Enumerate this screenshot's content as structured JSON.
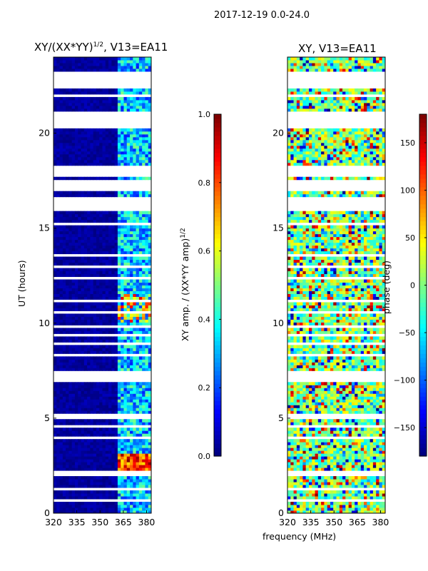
{
  "figure": {
    "suptitle": "2017-12-19 0.0-24.0"
  },
  "chart_data": [
    {
      "type": "heatmap",
      "title_main": "XY/(XX*YY)",
      "title_sup": "1/2",
      "title_suffix": ", V13=EA11",
      "xlabel": "frequency (MHz)",
      "ylabel": "UT (hours)",
      "xlim": [
        320,
        383
      ],
      "ylim": [
        0,
        24
      ],
      "xticks": [
        "320",
        "335",
        "350",
        "365",
        "380"
      ],
      "yticks": [
        "0",
        "5",
        "10",
        "15",
        "20"
      ],
      "colorbar": {
        "label_main": "XY amp. / (XX*YY amp)",
        "label_sup": "1/2",
        "range": [
          0.0,
          1.0
        ],
        "ticks": [
          "0.0",
          "0.2",
          "0.4",
          "0.6",
          "0.8",
          "1.0"
        ]
      },
      "colormap": "jet",
      "band_cols_MHz": [
        360,
        383
      ]
    },
    {
      "type": "heatmap",
      "title": "XY, V13=EA11",
      "xlabel": "frequency (MHz)",
      "ylabel": "",
      "xlim": [
        320,
        383
      ],
      "ylim": [
        0,
        24
      ],
      "xticks": [
        "320",
        "335",
        "350",
        "365",
        "380"
      ],
      "yticks": [
        "0",
        "5",
        "10",
        "15",
        "20"
      ],
      "colorbar": {
        "label": "phase (deg)",
        "range": [
          -180,
          180
        ],
        "ticks": [
          "−150",
          "−100",
          "−50",
          "0",
          "50",
          "100",
          "150"
        ]
      },
      "colormap": "jet"
    }
  ],
  "gaps_hours": [
    [
      23.0,
      23.3
    ],
    [
      22.3,
      22.9
    ],
    [
      21.9,
      22.0
    ],
    [
      20.2,
      21.1
    ],
    [
      19.9,
      20.0
    ],
    [
      17.9,
      18.3
    ],
    [
      17.7,
      17.8
    ],
    [
      16.9,
      17.5
    ],
    [
      15.9,
      16.7
    ],
    [
      15.2,
      15.3
    ],
    [
      14.8,
      14.9
    ],
    [
      14.2,
      14.3
    ],
    [
      13.5,
      13.6
    ],
    [
      12.9,
      13.0
    ],
    [
      12.3,
      12.4
    ],
    [
      11.8,
      11.9
    ],
    [
      11.1,
      11.2
    ],
    [
      10.5,
      10.6
    ],
    [
      9.8,
      9.95
    ],
    [
      9.3,
      9.4
    ],
    [
      8.9,
      9.0
    ],
    [
      8.3,
      8.4
    ],
    [
      7.9,
      8.0
    ],
    [
      7.1,
      7.5
    ],
    [
      6.9,
      7.0
    ],
    [
      5.0,
      5.3
    ],
    [
      4.5,
      4.6
    ],
    [
      3.9,
      4.0
    ],
    [
      3.4,
      3.5
    ],
    [
      2.0,
      2.2
    ],
    [
      1.2,
      1.4
    ],
    [
      0.6,
      0.7
    ]
  ]
}
